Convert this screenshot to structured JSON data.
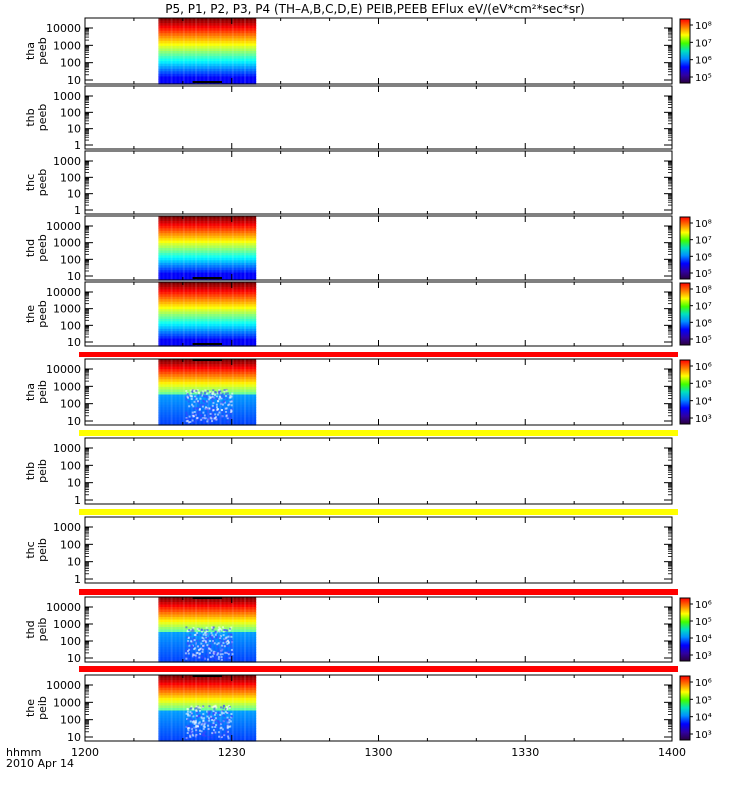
{
  "chart_data": {
    "type": "heatmap",
    "title": "P5, P1, P2, P3, P4 (TH–A,B,C,D,E) PEIB,PEEB EFlux eV/(eV*cm²*sec*sr)",
    "xlabel": "hhmm",
    "date_label": "2010 Apr 14",
    "x_ticks": [
      "1200",
      "1230",
      "1300",
      "1330",
      "1400"
    ],
    "panels": [
      {
        "id": "tha-peeb",
        "label_line1": "tha",
        "label_line2": "peeb",
        "y_ticks": [
          "10",
          "100",
          "1000",
          "10000"
        ],
        "has_data": true,
        "colorbar_ticks": [
          "10⁵",
          "10⁶",
          "10⁷",
          "10⁸"
        ],
        "strip": null,
        "style": "peeb"
      },
      {
        "id": "thb-peeb",
        "label_line1": "thb",
        "label_line2": "peeb",
        "y_ticks": [
          "1",
          "10",
          "100",
          "1000"
        ],
        "has_data": false,
        "colorbar_ticks": [],
        "strip": null,
        "style": "none"
      },
      {
        "id": "thc-peeb",
        "label_line1": "thc",
        "label_line2": "peeb",
        "y_ticks": [
          "1",
          "10",
          "100",
          "1000"
        ],
        "has_data": false,
        "colorbar_ticks": [],
        "strip": null,
        "style": "none"
      },
      {
        "id": "thd-peeb",
        "label_line1": "thd",
        "label_line2": "peeb",
        "y_ticks": [
          "10",
          "100",
          "1000",
          "10000"
        ],
        "has_data": true,
        "colorbar_ticks": [
          "10⁵",
          "10⁶",
          "10⁷",
          "10⁸"
        ],
        "strip": null,
        "style": "peeb"
      },
      {
        "id": "the-peeb",
        "label_line1": "the",
        "label_line2": "peeb",
        "y_ticks": [
          "10",
          "100",
          "1000",
          "10000"
        ],
        "has_data": true,
        "colorbar_ticks": [
          "10⁵",
          "10⁶",
          "10⁷",
          "10⁸"
        ],
        "strip": "#ff0000",
        "style": "peeb"
      },
      {
        "id": "tha-peib",
        "label_line1": "tha",
        "label_line2": "peib",
        "y_ticks": [
          "10",
          "100",
          "1000",
          "10000"
        ],
        "has_data": true,
        "colorbar_ticks": [
          "10³",
          "10⁴",
          "10⁵",
          "10⁶"
        ],
        "strip": "#ffff00",
        "style": "peib"
      },
      {
        "id": "thb-peib",
        "label_line1": "thb",
        "label_line2": "peib",
        "y_ticks": [
          "1",
          "10",
          "100",
          "1000"
        ],
        "has_data": false,
        "colorbar_ticks": [],
        "strip": "#ffff00",
        "style": "none"
      },
      {
        "id": "thc-peib",
        "label_line1": "thc",
        "label_line2": "peib",
        "y_ticks": [
          "1",
          "10",
          "100",
          "1000"
        ],
        "has_data": false,
        "colorbar_ticks": [],
        "strip": "#ff0000",
        "style": "none"
      },
      {
        "id": "thd-peib",
        "label_line1": "thd",
        "label_line2": "peib",
        "y_ticks": [
          "10",
          "100",
          "1000",
          "10000"
        ],
        "has_data": true,
        "colorbar_ticks": [
          "10³",
          "10⁴",
          "10⁵",
          "10⁶"
        ],
        "strip": "#ff0000",
        "style": "peib"
      },
      {
        "id": "the-peib",
        "label_line1": "the",
        "label_line2": "peib",
        "y_ticks": [
          "10",
          "100",
          "1000",
          "10000"
        ],
        "has_data": true,
        "colorbar_ticks": [
          "10³",
          "10⁴",
          "10⁵",
          "10⁶"
        ],
        "strip": null,
        "style": "peib"
      }
    ],
    "data_time_range": [
      "1215",
      "1235"
    ],
    "grid": false
  }
}
